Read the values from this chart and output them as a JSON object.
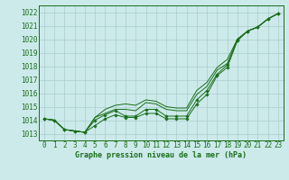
{
  "background_color": "#cceaea",
  "grid_color": "#aacccc",
  "line_color": "#1a6e1a",
  "marker_color": "#1a6e1a",
  "ylabel_values": [
    1013,
    1014,
    1015,
    1016,
    1017,
    1018,
    1019,
    1020,
    1021,
    1022
  ],
  "xlabel_values": [
    0,
    1,
    2,
    3,
    4,
    5,
    6,
    7,
    8,
    9,
    10,
    11,
    12,
    13,
    14,
    15,
    16,
    17,
    18,
    19,
    20,
    21,
    22,
    23
  ],
  "xlabel": "Graphe pression niveau de la mer (hPa)",
  "ylim": [
    1012.5,
    1022.5
  ],
  "xlim": [
    -0.5,
    23.5
  ],
  "series_lines": [
    [
      1014.1,
      1014.0,
      1013.3,
      1013.2,
      1013.1,
      1014.2,
      1014.8,
      1015.1,
      1015.2,
      1015.1,
      1015.5,
      1015.4,
      1015.0,
      1014.9,
      1014.9,
      1016.2,
      1016.8,
      1017.9,
      1018.5,
      1020.0,
      1020.6,
      1020.9,
      1021.5,
      1021.9
    ],
    [
      1014.1,
      1014.0,
      1013.3,
      1013.2,
      1013.1,
      1014.2,
      1014.5,
      1014.8,
      1014.8,
      1014.7,
      1015.3,
      1015.2,
      1014.8,
      1014.7,
      1014.7,
      1015.9,
      1016.5,
      1017.7,
      1018.2,
      1019.9,
      1020.6,
      1020.9,
      1021.5,
      1021.9
    ]
  ],
  "series_markers": [
    [
      1014.1,
      1014.0,
      1013.3,
      1013.2,
      1013.1,
      1014.0,
      1014.4,
      1014.7,
      1014.3,
      1014.3,
      1014.8,
      1014.8,
      1014.3,
      1014.3,
      1014.3,
      1015.5,
      1016.2,
      1017.4,
      1018.1,
      1020.0,
      1020.6,
      1020.9,
      1021.5,
      1021.9
    ],
    [
      1014.1,
      1014.0,
      1013.3,
      1013.2,
      1013.1,
      1013.6,
      1014.1,
      1014.4,
      1014.2,
      1014.2,
      1014.5,
      1014.5,
      1014.1,
      1014.1,
      1014.1,
      1015.2,
      1015.9,
      1017.3,
      1017.9,
      1019.9,
      1020.6,
      1020.9,
      1021.5,
      1021.9
    ]
  ],
  "tick_fontsize": 5.5,
  "xlabel_fontsize": 6.0
}
